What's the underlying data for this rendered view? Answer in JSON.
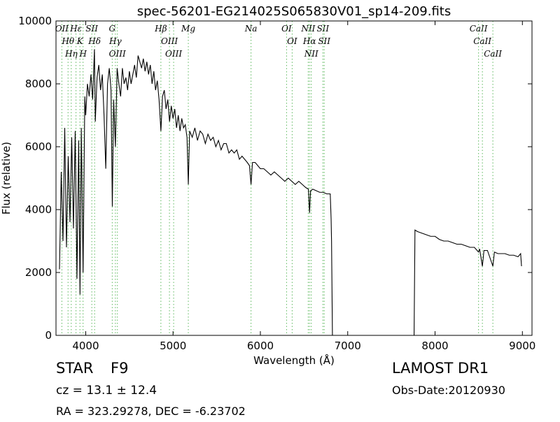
{
  "chart_data": {
    "type": "line",
    "title": "spec-56201-EG214025S065830V01_sp14-209.fits",
    "xlabel": "Wavelength (Å)",
    "ylabel": "Flux (relative)",
    "xlim": [
      3660,
      9110
    ],
    "ylim": [
      0,
      10000
    ],
    "xticks": [
      4000,
      5000,
      6000,
      7000,
      8000,
      9000
    ],
    "yticks": [
      0,
      2000,
      4000,
      6000,
      8000,
      10000
    ],
    "color": "#000000",
    "marker_color": "#5cb85c",
    "x": [
      3700,
      3720,
      3740,
      3760,
      3780,
      3800,
      3820,
      3840,
      3860,
      3880,
      3900,
      3920,
      3935,
      3950,
      3970,
      3990,
      4000,
      4020,
      4040,
      4060,
      4080,
      4100,
      4110,
      4130,
      4150,
      4170,
      4190,
      4210,
      4230,
      4250,
      4270,
      4290,
      4305,
      4320,
      4340,
      4360,
      4380,
      4400,
      4420,
      4440,
      4460,
      4480,
      4500,
      4520,
      4540,
      4560,
      4580,
      4600,
      4620,
      4640,
      4660,
      4680,
      4700,
      4720,
      4740,
      4760,
      4780,
      4800,
      4820,
      4840,
      4861,
      4880,
      4900,
      4920,
      4940,
      4960,
      4980,
      5000,
      5020,
      5040,
      5060,
      5080,
      5100,
      5120,
      5140,
      5160,
      5175,
      5190,
      5220,
      5250,
      5280,
      5310,
      5340,
      5370,
      5400,
      5430,
      5460,
      5490,
      5520,
      5550,
      5580,
      5610,
      5640,
      5670,
      5700,
      5730,
      5760,
      5790,
      5820,
      5850,
      5875,
      5893,
      5910,
      5940,
      5970,
      6000,
      6040,
      6080,
      6120,
      6160,
      6200,
      6240,
      6280,
      6320,
      6360,
      6400,
      6440,
      6480,
      6520,
      6550,
      6563,
      6575,
      6600,
      6640,
      6680,
      6720,
      6760,
      6800,
      6810,
      6815,
      6825,
      7760,
      7770,
      7800,
      7850,
      7900,
      7950,
      8000,
      8050,
      8100,
      8150,
      8200,
      8250,
      8300,
      8350,
      8400,
      8450,
      8498,
      8510,
      8542,
      8560,
      8600,
      8662,
      8680,
      8720,
      8800,
      8850,
      8900,
      8950,
      8980,
      8990
    ],
    "values": [
      2100,
      5200,
      3000,
      6600,
      2800,
      5700,
      3600,
      6300,
      3400,
      6500,
      1800,
      6200,
      1300,
      6600,
      2000,
      7600,
      7000,
      8000,
      7600,
      8300,
      7500,
      9100,
      6800,
      8200,
      8600,
      7800,
      8300,
      7000,
      5300,
      8000,
      8500,
      7800,
      4100,
      7500,
      6000,
      8500,
      8000,
      7600,
      8500,
      8000,
      8200,
      7800,
      8400,
      8000,
      8300,
      8600,
      8200,
      8900,
      8700,
      8500,
      8800,
      8400,
      8700,
      8300,
      8600,
      8000,
      8400,
      7800,
      8100,
      7500,
      6500,
      7600,
      7800,
      7200,
      7500,
      6800,
      7300,
      6900,
      7200,
      6600,
      7000,
      6500,
      6900,
      6600,
      6700,
      6300,
      4800,
      6500,
      6300,
      6600,
      6200,
      6500,
      6400,
      6100,
      6400,
      6200,
      6300,
      6000,
      6200,
      5900,
      6100,
      6100,
      5800,
      5900,
      5800,
      5900,
      5600,
      5700,
      5600,
      5500,
      5400,
      4800,
      5500,
      5500,
      5400,
      5300,
      5300,
      5200,
      5100,
      5200,
      5100,
      5000,
      4900,
      5000,
      4900,
      4800,
      4900,
      4800,
      4700,
      4650,
      3900,
      4600,
      4650,
      4600,
      4550,
      4550,
      4500,
      4500,
      3700,
      3000,
      0,
      0,
      3350,
      3300,
      3250,
      3200,
      3150,
      3150,
      3050,
      3000,
      3000,
      2950,
      2900,
      2900,
      2850,
      2800,
      2800,
      2650,
      2750,
      2200,
      2700,
      2700,
      2200,
      2650,
      2600,
      2600,
      2550,
      2550,
      2500,
      2600,
      2200
    ],
    "lines": [
      {
        "label": "OII",
        "wavelength": 3727
      },
      {
        "label": "Hθ",
        "wavelength": 3798
      },
      {
        "label": "Hη",
        "wavelength": 3835
      },
      {
        "label": "Hε",
        "wavelength": 3889
      },
      {
        "label": "K",
        "wavelength": 3934
      },
      {
        "label": "H",
        "wavelength": 3970
      },
      {
        "label": "SII",
        "wavelength": 4070
      },
      {
        "label": "Hδ",
        "wavelength": 4102
      },
      {
        "label": "G",
        "wavelength": 4304
      },
      {
        "label": "Hγ",
        "wavelength": 4340
      },
      {
        "label": "OIII",
        "wavelength": 4363
      },
      {
        "label": "Hβ",
        "wavelength": 4861
      },
      {
        "label": "OIII",
        "wavelength": 4959
      },
      {
        "label": "OIII",
        "wavelength": 5007
      },
      {
        "label": "Mg",
        "wavelength": 5175
      },
      {
        "label": "Na",
        "wavelength": 5893
      },
      {
        "label": "OI",
        "wavelength": 6300
      },
      {
        "label": "OI",
        "wavelength": 6364
      },
      {
        "label": "NII",
        "wavelength": 6548
      },
      {
        "label": "Hα",
        "wavelength": 6563
      },
      {
        "label": "NII",
        "wavelength": 6583
      },
      {
        "label": "SII",
        "wavelength": 6716
      },
      {
        "label": "SII",
        "wavelength": 6731
      },
      {
        "label": "CaII",
        "wavelength": 8498
      },
      {
        "label": "CaII",
        "wavelength": 8542
      },
      {
        "label": "CaII",
        "wavelength": 8662
      }
    ],
    "info": {
      "object_class": "STAR",
      "subclass": "F9",
      "redshift": "cz = 13.1  ± 12.4",
      "coords": "RA = 323.29278, DEC = -6.23702",
      "survey": "LAMOST DR1",
      "obs_date": "Obs-Date:20120930"
    }
  }
}
